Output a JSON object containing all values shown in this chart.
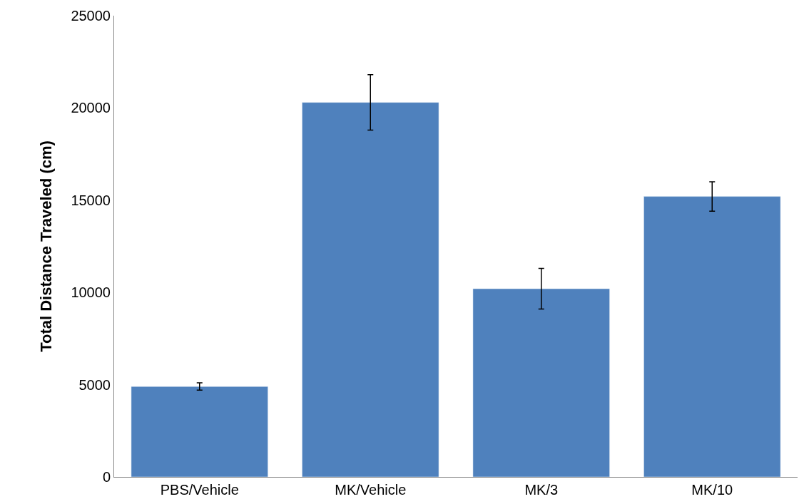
{
  "chart_data": {
    "type": "bar",
    "ylabel": "Total Distance Traveled (cm)",
    "categories": [
      "PBS/Vehicle",
      "MK/Vehicle",
      "MK/3",
      "MK/10"
    ],
    "values": [
      4900,
      20300,
      10200,
      15200
    ],
    "errors": [
      200,
      1500,
      1100,
      800
    ],
    "color": "#4f81bd",
    "ylim": [
      0,
      25000
    ],
    "yticks": [
      0,
      5000,
      10000,
      15000,
      20000,
      25000
    ]
  }
}
